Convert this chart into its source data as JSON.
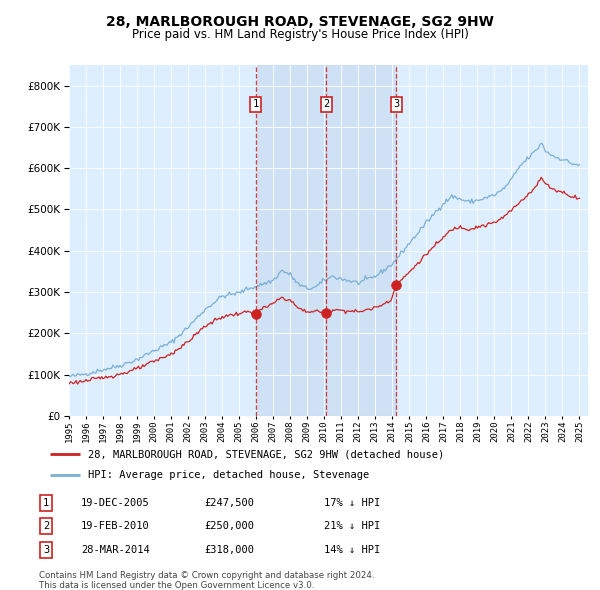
{
  "title": "28, MARLBOROUGH ROAD, STEVENAGE, SG2 9HW",
  "subtitle": "Price paid vs. HM Land Registry's House Price Index (HPI)",
  "legend_line1": "28, MARLBOROUGH ROAD, STEVENAGE, SG2 9HW (detached house)",
  "legend_line2": "HPI: Average price, detached house, Stevenage",
  "footer1": "Contains HM Land Registry data © Crown copyright and database right 2024.",
  "footer2": "This data is licensed under the Open Government Licence v3.0.",
  "hpi_color": "#7bafd4",
  "hpi_fill_color": "#c5d8ec",
  "price_color": "#cc2222",
  "background_color": "#ddeeff",
  "grid_color": "#c0cfe0",
  "sale_dates_decimal": [
    2005.963,
    2010.126,
    2014.2438
  ],
  "sale_prices": [
    247500,
    250000,
    318000
  ],
  "sale_labels": [
    "1",
    "2",
    "3"
  ],
  "sale_table": [
    [
      "1",
      "19-DEC-2005",
      "£247,500",
      "17% ↓ HPI"
    ],
    [
      "2",
      "19-FEB-2010",
      "£250,000",
      "21% ↓ HPI"
    ],
    [
      "3",
      "28-MAR-2014",
      "£318,000",
      "14% ↓ HPI"
    ]
  ],
  "ylim": [
    0,
    850000
  ],
  "yticks": [
    0,
    100000,
    200000,
    300000,
    400000,
    500000,
    600000,
    700000,
    800000
  ],
  "xlim": [
    1995.0,
    2025.5
  ],
  "xticks": [
    1995,
    1996,
    1997,
    1998,
    1999,
    2000,
    2001,
    2002,
    2003,
    2004,
    2005,
    2006,
    2007,
    2008,
    2009,
    2010,
    2011,
    2012,
    2013,
    2014,
    2015,
    2016,
    2017,
    2018,
    2019,
    2020,
    2021,
    2022,
    2023,
    2024,
    2025
  ],
  "hpi_anchors": [
    [
      1995.0,
      95000
    ],
    [
      1996.0,
      102000
    ],
    [
      1997.0,
      112000
    ],
    [
      1998.0,
      122000
    ],
    [
      1999.0,
      137000
    ],
    [
      2000.0,
      158000
    ],
    [
      2001.0,
      178000
    ],
    [
      2002.0,
      215000
    ],
    [
      2003.0,
      258000
    ],
    [
      2004.0,
      290000
    ],
    [
      2005.0,
      298000
    ],
    [
      2005.5,
      308000
    ],
    [
      2006.0,
      314000
    ],
    [
      2007.0,
      328000
    ],
    [
      2007.5,
      352000
    ],
    [
      2008.0,
      342000
    ],
    [
      2008.5,
      318000
    ],
    [
      2009.0,
      308000
    ],
    [
      2009.5,
      312000
    ],
    [
      2010.0,
      328000
    ],
    [
      2010.5,
      338000
    ],
    [
      2011.0,
      332000
    ],
    [
      2012.0,
      322000
    ],
    [
      2013.0,
      338000
    ],
    [
      2014.0,
      368000
    ],
    [
      2015.0,
      418000
    ],
    [
      2016.0,
      468000
    ],
    [
      2017.0,
      515000
    ],
    [
      2017.5,
      532000
    ],
    [
      2018.0,
      525000
    ],
    [
      2018.5,
      518000
    ],
    [
      2019.0,
      522000
    ],
    [
      2019.5,
      528000
    ],
    [
      2020.0,
      535000
    ],
    [
      2020.5,
      548000
    ],
    [
      2021.0,
      572000
    ],
    [
      2021.5,
      605000
    ],
    [
      2022.0,
      625000
    ],
    [
      2022.5,
      645000
    ],
    [
      2022.75,
      662000
    ],
    [
      2023.0,
      642000
    ],
    [
      2023.5,
      628000
    ],
    [
      2024.0,
      622000
    ],
    [
      2024.5,
      612000
    ],
    [
      2025.0,
      607000
    ]
  ],
  "price_anchors": [
    [
      1995.0,
      80000
    ],
    [
      1996.0,
      85000
    ],
    [
      1997.0,
      93000
    ],
    [
      1998.0,
      101000
    ],
    [
      1999.0,
      114000
    ],
    [
      2000.0,
      132000
    ],
    [
      2001.0,
      150000
    ],
    [
      2002.0,
      180000
    ],
    [
      2003.0,
      218000
    ],
    [
      2004.0,
      240000
    ],
    [
      2005.0,
      248000
    ],
    [
      2005.5,
      252000
    ],
    [
      2005.96,
      247500
    ],
    [
      2006.2,
      256000
    ],
    [
      2007.0,
      272000
    ],
    [
      2007.5,
      287000
    ],
    [
      2008.0,
      280000
    ],
    [
      2008.5,
      260000
    ],
    [
      2009.0,
      252000
    ],
    [
      2009.5,
      254000
    ],
    [
      2010.13,
      250000
    ],
    [
      2010.5,
      258000
    ],
    [
      2011.0,
      256000
    ],
    [
      2012.0,
      252000
    ],
    [
      2013.0,
      262000
    ],
    [
      2013.9,
      280000
    ],
    [
      2014.24,
      318000
    ],
    [
      2014.5,
      328000
    ],
    [
      2015.0,
      348000
    ],
    [
      2016.0,
      392000
    ],
    [
      2017.0,
      432000
    ],
    [
      2017.5,
      452000
    ],
    [
      2018.0,
      458000
    ],
    [
      2018.5,
      452000
    ],
    [
      2019.0,
      458000
    ],
    [
      2019.5,
      462000
    ],
    [
      2020.0,
      468000
    ],
    [
      2020.5,
      480000
    ],
    [
      2021.0,
      498000
    ],
    [
      2021.5,
      518000
    ],
    [
      2022.0,
      538000
    ],
    [
      2022.5,
      558000
    ],
    [
      2022.75,
      578000
    ],
    [
      2023.0,
      562000
    ],
    [
      2023.5,
      548000
    ],
    [
      2024.0,
      542000
    ],
    [
      2024.5,
      532000
    ],
    [
      2025.0,
      528000
    ]
  ]
}
